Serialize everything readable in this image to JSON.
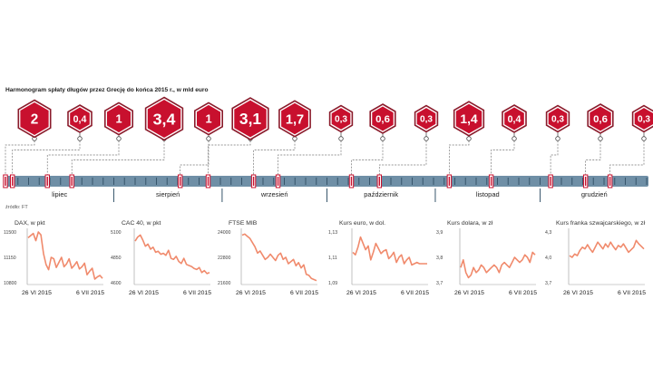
{
  "title": "Harmonogram spłaty długów przez Grecję do końca 2015 r., w  mld euro",
  "source": "źródło: FT",
  "colors": {
    "accent": "#c8102e",
    "badge_outline": "#8a1b2b",
    "scale_bar": "#6f8fa6",
    "tick": "#37556b",
    "series_line": "#f08a6c",
    "dashed_line": "#777777"
  },
  "months": [
    "lipiec",
    "sierpień",
    "wrzesień",
    "październik",
    "listopad",
    "grudzień"
  ],
  "payments": [
    {
      "label": "2",
      "value": 2.0,
      "date": "2015-07-01"
    },
    {
      "label": "0,4",
      "value": 0.4,
      "date": "2015-07-03"
    },
    {
      "label": "1",
      "value": 1.0,
      "date": "2015-07-13"
    },
    {
      "label": "3,4",
      "value": 3.4,
      "date": "2015-07-20"
    },
    {
      "label": "1",
      "value": 1.0,
      "date": "2015-08-20"
    },
    {
      "label": "3,1",
      "value": 3.1,
      "date": "2015-08-28"
    },
    {
      "label": "1,7",
      "value": 1.7,
      "date": "2015-09-10"
    },
    {
      "label": "0,3",
      "value": 0.3,
      "date": "2015-09-17"
    },
    {
      "label": "0,6",
      "value": 0.6,
      "date": "2015-10-08"
    },
    {
      "label": "0,3",
      "value": 0.3,
      "date": "2015-10-16"
    },
    {
      "label": "1,4",
      "value": 1.4,
      "date": "2015-11-05"
    },
    {
      "label": "0,4",
      "value": 0.4,
      "date": "2015-11-17"
    },
    {
      "label": "0,3",
      "value": 0.3,
      "date": "2015-12-04"
    },
    {
      "label": "0,6",
      "value": 0.6,
      "date": "2015-12-14"
    },
    {
      "label": "0,3",
      "value": 0.3,
      "date": "2015-12-21"
    }
  ],
  "chart_data": [
    {
      "type": "line",
      "title": "DAX, w pkt",
      "x_labels": [
        "26 VI 2015",
        "6 VII 2015"
      ],
      "yticks": [
        "11500",
        "11150",
        "10800"
      ],
      "ylim": [
        10800,
        11500
      ],
      "values": [
        11420,
        11450,
        11480,
        11380,
        11500,
        11460,
        11200,
        11050,
        10980,
        11150,
        11130,
        11010,
        11080,
        11150,
        11020,
        11060,
        11130,
        11000,
        11040,
        11090,
        10990,
        11020,
        11070,
        10910,
        10960,
        11000,
        10850,
        10880,
        10900,
        10860
      ]
    },
    {
      "type": "line",
      "title": "CAC 40, w pkt",
      "x_labels": [
        "26 VI 2015",
        "6 VII 2015"
      ],
      "yticks": [
        "5100",
        "4850",
        "4600"
      ],
      "ylim": [
        4600,
        5100
      ],
      "values": [
        5010,
        5050,
        5070,
        5020,
        4960,
        4980,
        4930,
        4950,
        4900,
        4910,
        4880,
        4890,
        4870,
        4920,
        4840,
        4830,
        4860,
        4810,
        4790,
        4840,
        4780,
        4770,
        4760,
        4740,
        4730,
        4750,
        4700,
        4720,
        4690,
        4700
      ]
    },
    {
      "type": "line",
      "title": "FTSE MIB",
      "x_labels": [
        "26 VI 2015",
        "6 VII 2015"
      ],
      "yticks": [
        "24000",
        "22800",
        "21600"
      ],
      "ylim": [
        21600,
        24000
      ],
      "values": [
        23850,
        23900,
        23800,
        23700,
        23500,
        23300,
        23000,
        23100,
        22900,
        22700,
        22800,
        22950,
        22800,
        22650,
        22900,
        23000,
        22700,
        22800,
        22500,
        22600,
        22700,
        22400,
        22550,
        22300,
        22450,
        22000,
        21950,
        21800,
        21750,
        21700
      ]
    },
    {
      "type": "line",
      "title": "Kurs euro, w dol.",
      "x_labels": [
        "26 VI 2015",
        "6 VII 2015"
      ],
      "yticks": [
        "1,13",
        "1,11",
        "1,09"
      ],
      "ylim": [
        1.09,
        1.13
      ],
      "values": [
        1.114,
        1.112,
        1.118,
        1.126,
        1.121,
        1.116,
        1.119,
        1.108,
        1.114,
        1.121,
        1.117,
        1.113,
        1.115,
        1.116,
        1.109,
        1.111,
        1.114,
        1.106,
        1.11,
        1.112,
        1.105,
        1.108,
        1.11,
        1.104,
        1.105,
        1.106,
        1.105,
        1.105,
        1.105,
        1.105
      ]
    },
    {
      "type": "line",
      "title": "Kurs dolara, w zł",
      "x_labels": [
        "26 VI 2015",
        "6 VII 2015"
      ],
      "yticks": [
        "3,9",
        "3,8",
        "3,7"
      ],
      "ylim": [
        3.7,
        3.9
      ],
      "values": [
        3.76,
        3.79,
        3.74,
        3.72,
        3.73,
        3.76,
        3.74,
        3.75,
        3.77,
        3.76,
        3.74,
        3.75,
        3.76,
        3.77,
        3.76,
        3.74,
        3.77,
        3.78,
        3.77,
        3.76,
        3.78,
        3.8,
        3.79,
        3.78,
        3.79,
        3.81,
        3.8,
        3.78,
        3.82,
        3.81
      ]
    },
    {
      "type": "line",
      "title": "Kurs franka szwajcarskiego, w zł",
      "x_labels": [
        "26 VI 2015",
        "6 VII 2015"
      ],
      "yticks": [
        "4,3",
        "4,0",
        "3,7"
      ],
      "ylim": [
        3.7,
        4.3
      ],
      "values": [
        4.02,
        4.0,
        4.04,
        4.02,
        4.08,
        4.12,
        4.1,
        4.15,
        4.1,
        4.06,
        4.12,
        4.18,
        4.14,
        4.1,
        4.16,
        4.12,
        4.18,
        4.13,
        4.09,
        4.14,
        4.12,
        4.16,
        4.11,
        4.06,
        4.09,
        4.12,
        4.2,
        4.16,
        4.13,
        4.1
      ]
    }
  ]
}
